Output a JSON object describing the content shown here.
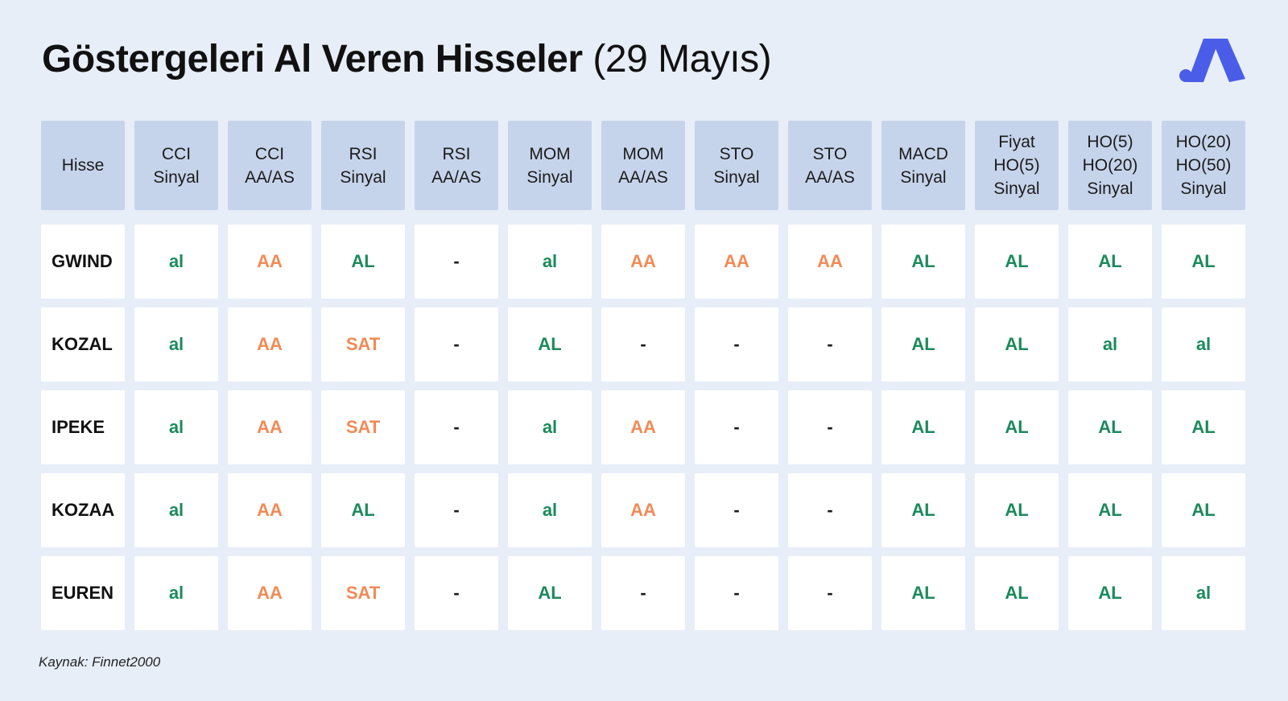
{
  "title": {
    "main": "Göstergeleri Al Veren Hisseler",
    "sub": "(29 Mayıs)"
  },
  "colors": {
    "background": "#e8eef8",
    "header": "#c6d4eb",
    "green": "#1c8a5c",
    "orange": "#f28a55",
    "logo": "#4a5de8"
  },
  "logo": {
    "icon": "brand-logo-icon"
  },
  "table": {
    "headers": [
      "Hisse",
      "CCI\nSinyal",
      "CCI\nAA/AS",
      "RSI\nSinyal",
      "RSI\nAA/AS",
      "MOM\nSinyal",
      "MOM\nAA/AS",
      "STO\nSinyal",
      "STO\nAA/AS",
      "MACD\nSinyal",
      "Fiyat\nHO(5)\nSinyal",
      "HO(5)\nHO(20)\nSinyal",
      "HO(20)\nHO(50)\nSinyal"
    ],
    "rows": [
      {
        "name": "GWIND",
        "cells": [
          "al",
          "AA",
          "AL",
          "-",
          "al",
          "AA",
          "AA",
          "AA",
          "AL",
          "AL",
          "AL",
          "AL"
        ]
      },
      {
        "name": "KOZAL",
        "cells": [
          "al",
          "AA",
          "SAT",
          "-",
          "AL",
          "-",
          "-",
          "-",
          "AL",
          "AL",
          "al",
          "al"
        ]
      },
      {
        "name": "IPEKE",
        "cells": [
          "al",
          "AA",
          "SAT",
          "-",
          "al",
          "AA",
          "-",
          "-",
          "AL",
          "AL",
          "AL",
          "AL"
        ]
      },
      {
        "name": "KOZAA",
        "cells": [
          "al",
          "AA",
          "AL",
          "-",
          "al",
          "AA",
          "-",
          "-",
          "AL",
          "AL",
          "AL",
          "AL"
        ]
      },
      {
        "name": "EUREN",
        "cells": [
          "al",
          "AA",
          "SAT",
          "-",
          "AL",
          "-",
          "-",
          "-",
          "AL",
          "AL",
          "AL",
          "al"
        ]
      }
    ]
  },
  "source": "Kaynak: Finnet2000"
}
